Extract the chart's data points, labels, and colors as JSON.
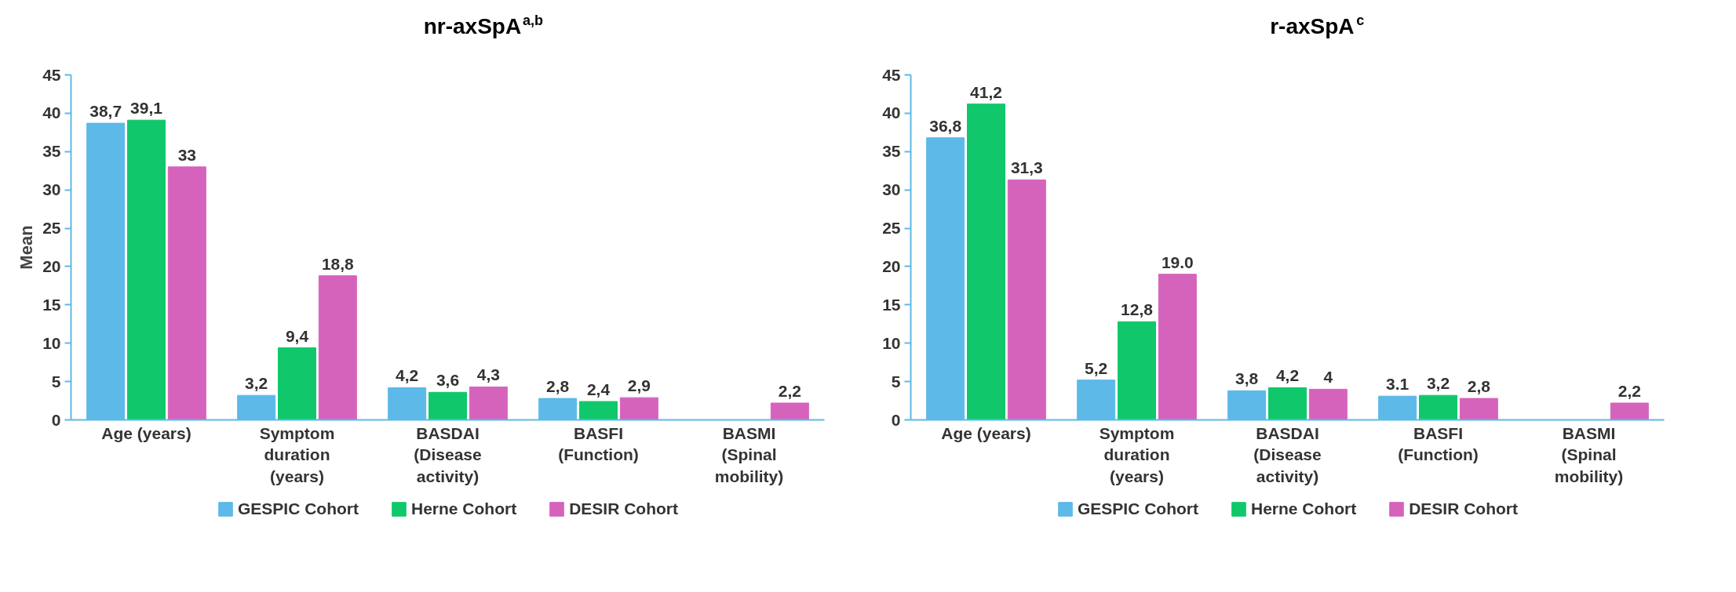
{
  "chart_data": [
    {
      "type": "bar",
      "title": "nr-axSpA$^{a,b}$",
      "ylabel": "Mean",
      "categories": [
        "Age (years)",
        "Symptom\nduration\n(years)",
        "BASDAI\n(Disease\nactivity)",
        "BASFI\n(Function)",
        "BASMI\n(Spinal\nmobility)"
      ],
      "ylim": [
        0,
        45
      ],
      "yticks": [
        0,
        5,
        10,
        15,
        20,
        25,
        30,
        35,
        40,
        45
      ],
      "grid": false,
      "legend": "bottom",
      "series": [
        {
          "name": "GESPIC Cohort",
          "color": "#5cb9e8",
          "values": [
            38.7,
            3.2,
            4.2,
            2.8,
            null
          ],
          "value_labels": [
            "38,7",
            "3,2",
            "4,2",
            "2,8",
            null
          ]
        },
        {
          "name": "Herne Cohort",
          "color": "#10c86b",
          "values": [
            39.1,
            9.4,
            3.6,
            2.4,
            null
          ],
          "value_labels": [
            "39,1",
            "9,4",
            "3,6",
            "2,4",
            null
          ]
        },
        {
          "name": "DESIR Cohort",
          "color": "#d563bc",
          "values": [
            33,
            18.8,
            4.3,
            2.9,
            2.2
          ],
          "value_labels": [
            "33",
            "18,8",
            "4,3",
            "2,9",
            "2,2"
          ]
        }
      ]
    },
    {
      "type": "bar",
      "title": "r-axSpA$^{c}$",
      "categories": [
        "Age (years)",
        "Symptom\nduration\n(years)",
        "BASDAI\n(Disease\nactivity)",
        "BASFI\n(Function)",
        "BASMI\n(Spinal\nmobility)"
      ],
      "ylim": [
        0,
        45
      ],
      "yticks": [
        0,
        5,
        10,
        15,
        20,
        25,
        30,
        35,
        40,
        45
      ],
      "grid": false,
      "legend": "bottom",
      "series": [
        {
          "name": "GESPIC Cohort",
          "color": "#5cb9e8",
          "values": [
            36.8,
            5.2,
            3.8,
            3.1,
            null
          ],
          "value_labels": [
            "36,8",
            "5,2",
            "3,8",
            "3.1",
            null
          ]
        },
        {
          "name": "Herne Cohort",
          "color": "#10c86b",
          "values": [
            41.2,
            12.8,
            4.2,
            3.2,
            null
          ],
          "value_labels": [
            "41,2",
            "12,8",
            "4,2",
            "3,2",
            null
          ]
        },
        {
          "name": "DESIR Cohort",
          "color": "#d563bc",
          "values": [
            31.3,
            19.0,
            4,
            2.8,
            2.2
          ],
          "value_labels": [
            "31,3",
            "19.0",
            "4",
            "2,8",
            "2,2"
          ]
        }
      ]
    }
  ]
}
